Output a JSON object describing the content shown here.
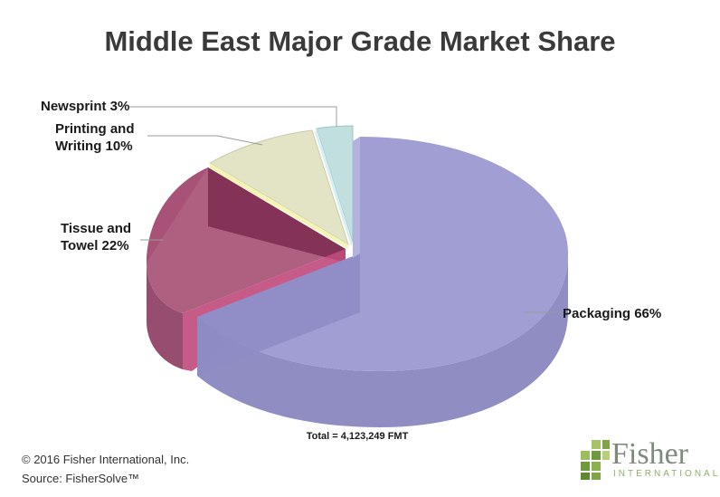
{
  "chart_data": {
    "type": "pie",
    "title": "Middle East Major Grade Market Share",
    "slices": [
      {
        "label": "Packaging 66%",
        "value": 66,
        "color": "#9c9ad0"
      },
      {
        "label": "Tissue and Towel 22%",
        "value": 22,
        "color": "#a04a6e"
      },
      {
        "label": "Printing and Writing 10%",
        "value": 10,
        "color": "#e3e4c6"
      },
      {
        "label": "Newsprint 3%",
        "value": 3,
        "color": "#c2dfe0"
      }
    ],
    "annotation": "Total = 4,123,249 FMT"
  },
  "labels": {
    "newsprint": "Newsprint 3%",
    "printing_line1": "Printing and",
    "printing_line2": "Writing 10%",
    "tissue_line1": "Tissue and",
    "tissue_line2": "Towel 22%",
    "packaging": "Packaging 66%"
  },
  "footer": {
    "copyright": "© 2016 Fisher International, Inc.",
    "source": "Source: FisherSolve™"
  },
  "logo": {
    "name": "Fisher",
    "sub": "INTERNATIONAL"
  }
}
